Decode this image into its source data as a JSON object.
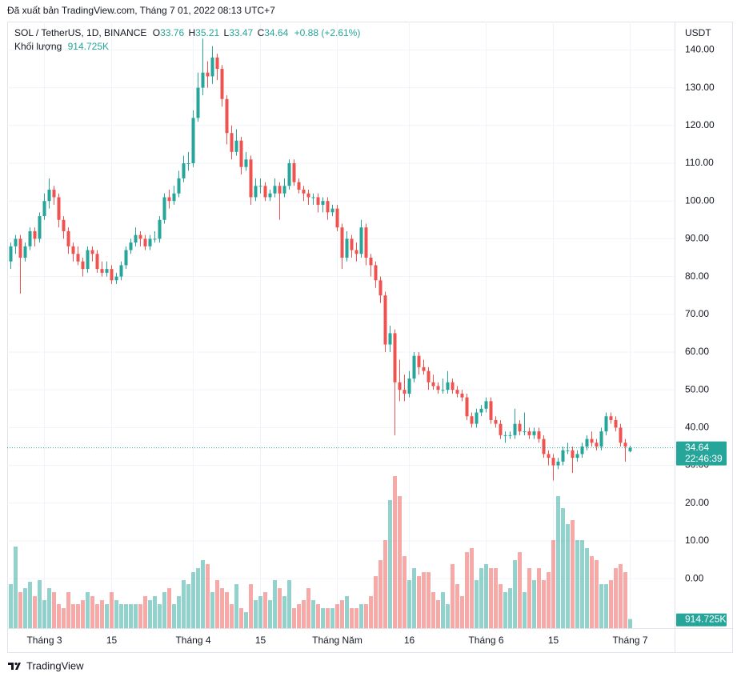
{
  "chart_data": {
    "type": "candlestick",
    "published": "Đã xuất bản TradingView.com, Tháng 7 01, 2022 08:13 UTC+7",
    "symbol": "SOL / TetherUS, 1D, BINANCE",
    "ohlc_labels": [
      "O",
      "H",
      "L",
      "C"
    ],
    "change_label": "+0.88 (+2.61%)",
    "currency": "USDT",
    "countdown": "22:46:39",
    "up_color": "#26a69a",
    "down_color": "#ef5350",
    "brand": "TradingView",
    "categories": [
      null,
      null,
      null,
      null,
      null,
      null,
      null,
      "Tháng 3",
      null,
      null,
      null,
      null,
      null,
      null,
      null,
      null,
      null,
      null,
      null,
      null,
      null,
      "15",
      null,
      null,
      null,
      null,
      null,
      null,
      null,
      null,
      null,
      null,
      null,
      null,
      null,
      null,
      null,
      null,
      "Tháng 4",
      null,
      null,
      null,
      null,
      null,
      null,
      null,
      null,
      null,
      null,
      null,
      null,
      null,
      "15",
      null,
      null,
      null,
      null,
      null,
      null,
      null,
      null,
      null,
      null,
      null,
      null,
      null,
      null,
      null,
      "Tháng Năm",
      null,
      null,
      null,
      null,
      null,
      null,
      null,
      null,
      null,
      null,
      null,
      null,
      null,
      null,
      "16",
      null,
      null,
      null,
      null,
      null,
      null,
      null,
      null,
      null,
      null,
      null,
      null,
      null,
      null,
      null,
      "Tháng 6",
      null,
      null,
      null,
      null,
      null,
      null,
      null,
      null,
      null,
      null,
      null,
      null,
      null,
      "15",
      null,
      null,
      null,
      null,
      null,
      null,
      null,
      null,
      null,
      null,
      null,
      null,
      null,
      null,
      null,
      "Tháng 7"
    ],
    "ohlc": [
      [
        84,
        89,
        82,
        88
      ],
      [
        88,
        91,
        86,
        90
      ],
      [
        90,
        91,
        75.5,
        85
      ],
      [
        85,
        89,
        84,
        88
      ],
      [
        88,
        93,
        87,
        92
      ],
      [
        92,
        93,
        88,
        90
      ],
      [
        90,
        97,
        89,
        96
      ],
      [
        96,
        102,
        95,
        100
      ],
      [
        100,
        106,
        98,
        103
      ],
      [
        103,
        104,
        99,
        101
      ],
      [
        101,
        102,
        93,
        95
      ],
      [
        95,
        96,
        90,
        92
      ],
      [
        92,
        93,
        86,
        88
      ],
      [
        88,
        89,
        84,
        86
      ],
      [
        86,
        88,
        83,
        84
      ],
      [
        84,
        85,
        80,
        82
      ],
      [
        82,
        88,
        81,
        87
      ],
      [
        87,
        88,
        84,
        86
      ],
      [
        86,
        87,
        81,
        82
      ],
      [
        82,
        84,
        80,
        81
      ],
      [
        81,
        84,
        80,
        82
      ],
      [
        82,
        83,
        78,
        79
      ],
      [
        79,
        81,
        78,
        80
      ],
      [
        80,
        84,
        79,
        83
      ],
      [
        83,
        88,
        82,
        87
      ],
      [
        87,
        90,
        86,
        89
      ],
      [
        89,
        93,
        88,
        91
      ],
      [
        91,
        92,
        88,
        90
      ],
      [
        90,
        91,
        87,
        88
      ],
      [
        88,
        91,
        87,
        90
      ],
      [
        90,
        92,
        89,
        90
      ],
      [
        90,
        96,
        89,
        95
      ],
      [
        95,
        102,
        94,
        101
      ],
      [
        101,
        103,
        98,
        100
      ],
      [
        100,
        104,
        99,
        102
      ],
      [
        102,
        108,
        101,
        106
      ],
      [
        106,
        112,
        105,
        110
      ],
      [
        110,
        113,
        108,
        110
      ],
      [
        110,
        124,
        109,
        122
      ],
      [
        122,
        134,
        121,
        130
      ],
      [
        130,
        143,
        128,
        134
      ],
      [
        134,
        137,
        130,
        133
      ],
      [
        133,
        141,
        131,
        138
      ],
      [
        138,
        139,
        132,
        135
      ],
      [
        135,
        136,
        125,
        127
      ],
      [
        127,
        128,
        115,
        118
      ],
      [
        118,
        120,
        111,
        113
      ],
      [
        113,
        119,
        112,
        116
      ],
      [
        116,
        117,
        107,
        109
      ],
      [
        109,
        113,
        108,
        111
      ],
      [
        111,
        112,
        99,
        101
      ],
      [
        101,
        106,
        100,
        104
      ],
      [
        104,
        106,
        102,
        104
      ],
      [
        104,
        105,
        100,
        101
      ],
      [
        101,
        103,
        100,
        102
      ],
      [
        102,
        106,
        101,
        104
      ],
      [
        104,
        105,
        95,
        102
      ],
      [
        102,
        106,
        101,
        104
      ],
      [
        104,
        111,
        103,
        110
      ],
      [
        110,
        111,
        104,
        105
      ],
      [
        105,
        106,
        102,
        103
      ],
      [
        103,
        104,
        100,
        102
      ],
      [
        102,
        103,
        99,
        101
      ],
      [
        101,
        102,
        99,
        101
      ],
      [
        101,
        102,
        97,
        99
      ],
      [
        99,
        101,
        97,
        100
      ],
      [
        100,
        101,
        95,
        97
      ],
      [
        97,
        99,
        96,
        98
      ],
      [
        98,
        99,
        92,
        93
      ],
      [
        93,
        94,
        82,
        85
      ],
      [
        85,
        92,
        84,
        90
      ],
      [
        90,
        91,
        85,
        87
      ],
      [
        87,
        89,
        84,
        86
      ],
      [
        86,
        95,
        85,
        93
      ],
      [
        93,
        94,
        83,
        85
      ],
      [
        85,
        86,
        80,
        83
      ],
      [
        83,
        84,
        77,
        79
      ],
      [
        79,
        80,
        73,
        75
      ],
      [
        75,
        76,
        60,
        62
      ],
      [
        62,
        67,
        60,
        65
      ],
      [
        65,
        66,
        38,
        52
      ],
      [
        52,
        58,
        47,
        50
      ],
      [
        50,
        54,
        47,
        49
      ],
      [
        49,
        55,
        48,
        53
      ],
      [
        53,
        60,
        52,
        59
      ],
      [
        59,
        60,
        54,
        56
      ],
      [
        56,
        58,
        54,
        55
      ],
      [
        55,
        56,
        50,
        52
      ],
      [
        52,
        54,
        50,
        51
      ],
      [
        51,
        52,
        49,
        50
      ],
      [
        50,
        53,
        49,
        50
      ],
      [
        50,
        55,
        49,
        52
      ],
      [
        52,
        53,
        49,
        50
      ],
      [
        50,
        51,
        48,
        49
      ],
      [
        49,
        50,
        47,
        48
      ],
      [
        48,
        49,
        42,
        43
      ],
      [
        43,
        44,
        40,
        41
      ],
      [
        41,
        45,
        40,
        44
      ],
      [
        44,
        46,
        43,
        45
      ],
      [
        45,
        48,
        44,
        47
      ],
      [
        47,
        48,
        41,
        42
      ],
      [
        42,
        43,
        40,
        41
      ],
      [
        41,
        42,
        37,
        38
      ],
      [
        38,
        39,
        36,
        38
      ],
      [
        38,
        39,
        37,
        38
      ],
      [
        38,
        45,
        37,
        41
      ],
      [
        41,
        42,
        38,
        39
      ],
      [
        39,
        44,
        38,
        39
      ],
      [
        39,
        40,
        37,
        38
      ],
      [
        38,
        40,
        37,
        39
      ],
      [
        39,
        40,
        36,
        37
      ],
      [
        37,
        38,
        32,
        33
      ],
      [
        33,
        34,
        30,
        32
      ],
      [
        32,
        33,
        26,
        30
      ],
      [
        30,
        32,
        29,
        31
      ],
      [
        31,
        35,
        30,
        34
      ],
      [
        34,
        36,
        33,
        34
      ],
      [
        34,
        35,
        28,
        32
      ],
      [
        32,
        34,
        31,
        33
      ],
      [
        33,
        36,
        32,
        35
      ],
      [
        35,
        38,
        34,
        37
      ],
      [
        37,
        39,
        35,
        36
      ],
      [
        36,
        37,
        34,
        35
      ],
      [
        35,
        40,
        34,
        39
      ],
      [
        39,
        44,
        38,
        43
      ],
      [
        43,
        44,
        41,
        42
      ],
      [
        42,
        43,
        39,
        40
      ],
      [
        40,
        41,
        35,
        36
      ],
      [
        36,
        37,
        31,
        35
      ],
      [
        33.76,
        35.21,
        33.47,
        34.64
      ]
    ],
    "volume": {
      "name": "Khối lượng",
      "last_label": "914.725K",
      "ylim": [
        0,
        30400
      ],
      "values": [
        4400,
        8160,
        3600,
        4000,
        4640,
        3200,
        4800,
        2800,
        4000,
        3600,
        2400,
        2000,
        3600,
        2400,
        2400,
        2800,
        3600,
        3200,
        2400,
        2800,
        2400,
        3600,
        2800,
        2400,
        2400,
        2400,
        2400,
        2400,
        3200,
        2800,
        3200,
        2400,
        3600,
        4000,
        2400,
        3200,
        4800,
        4400,
        5600,
        6000,
        6800,
        6400,
        3600,
        4800,
        4000,
        3600,
        2400,
        4400,
        2000,
        1600,
        4400,
        2800,
        3200,
        3600,
        2800,
        4800,
        4000,
        3200,
        4800,
        2000,
        2400,
        2800,
        4000,
        2800,
        2400,
        2000,
        2000,
        2000,
        2400,
        2800,
        3200,
        2000,
        2000,
        2400,
        2400,
        3200,
        5200,
        6800,
        8800,
        12800,
        15200,
        13200,
        7200,
        4800,
        6000,
        5200,
        5600,
        5600,
        3600,
        2800,
        3600,
        2400,
        6400,
        4400,
        3200,
        7600,
        8000,
        4800,
        6000,
        6400,
        6000,
        6000,
        4400,
        3600,
        4000,
        6800,
        7600,
        3600,
        6000,
        4800,
        6000,
        4800,
        5600,
        8800,
        13200,
        12000,
        10400,
        10800,
        8800,
        8800,
        8000,
        7200,
        6800,
        4400,
        4400,
        4800,
        6000,
        6400,
        5600,
        914.725
      ]
    },
    "ylim": [
      -13.1,
      147.5
    ],
    "yticks": [
      {
        "value": 0,
        "label": "0.00"
      },
      {
        "value": 10,
        "label": "10.00"
      },
      {
        "value": 20,
        "label": "20.00"
      },
      {
        "value": 30,
        "label": "30.00"
      },
      {
        "value": 40,
        "label": "40.00"
      },
      {
        "value": 50,
        "label": "50.00"
      },
      {
        "value": 60,
        "label": "60.00"
      },
      {
        "value": 70,
        "label": "70.00"
      },
      {
        "value": 80,
        "label": "80.00"
      },
      {
        "value": 90,
        "label": "90.00"
      },
      {
        "value": 100,
        "label": "100.00"
      },
      {
        "value": 110,
        "label": "110.00"
      },
      {
        "value": 120,
        "label": "120.00"
      },
      {
        "value": 130,
        "label": "130.00"
      },
      {
        "value": 140,
        "label": "140.00"
      }
    ],
    "grid": true
  }
}
